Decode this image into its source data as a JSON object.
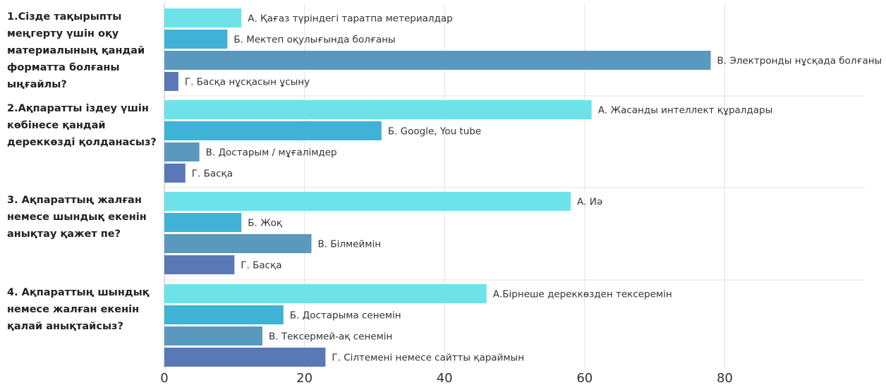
{
  "chart_data": {
    "type": "bar",
    "orientation": "horizontal",
    "groups": [
      {
        "title": "1.Сізде тақырыпты меңгерту үшін оқу материалының қандай форматта болғаны ыңғайлы?",
        "categories": [
          "А. Қағаз түріндегі таратпа метериалдар",
          "Б. Мектеп оқулығында болғаны",
          "В. Электронды нұсқада болғаны",
          "Г. Басқа нұсқасын ұсыну"
        ],
        "values": [
          11,
          9,
          78,
          2
        ]
      },
      {
        "title": "2.Ақпаратты іздеу үшін көбінесе қандай дереккөзді қолданасыз?",
        "categories": [
          "А. Жасанды интеллект құралдары",
          "Б. Google, You tube",
          "В. Достарым / мұғалімдер",
          "Г. Басқа"
        ],
        "values": [
          61,
          31,
          5,
          3
        ]
      },
      {
        "title": "3. Ақпараттың жалған немесе шындық екенін анықтау қажет пе?",
        "categories": [
          "А. Иә",
          "Б. Жоқ",
          "В. Білмеймін",
          "Г. Басқа"
        ],
        "values": [
          58,
          11,
          21,
          10
        ]
      },
      {
        "title": "4. Ақпараттың шындық немесе жалған екенін қалай анықтайсыз?",
        "categories": [
          "А.Бірнеше дереккөзден тексеремін",
          "Б. Достарыма сенемін",
          "В. Тексермей-ақ сенемін",
          "Г. Сілтемені немесе сайтты қараймын"
        ],
        "values": [
          46,
          17,
          14,
          23
        ]
      }
    ],
    "colors": [
      "#6de3e9",
      "#3fb2d6",
      "#5a99bd",
      "#5a78b6"
    ],
    "xlim": [
      0,
      100
    ],
    "xticks": [
      0,
      20,
      40,
      60,
      80
    ],
    "grid": true
  }
}
